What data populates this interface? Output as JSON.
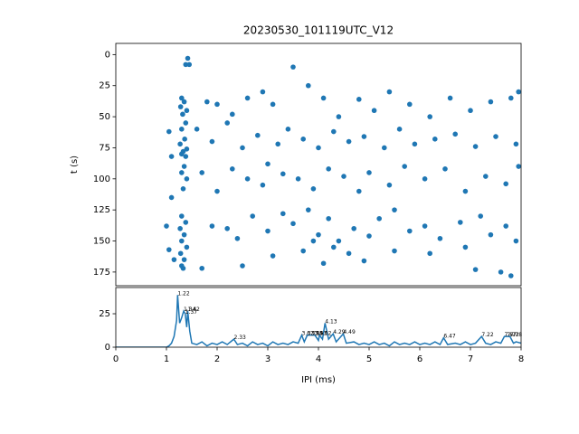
{
  "chart_data": [
    {
      "type": "scatter",
      "title": "20230530_101119UTC_V12",
      "ylabel": "t (s)",
      "color": "#1f77b4",
      "xlim": [
        0,
        8
      ],
      "ylim": [
        186,
        -9
      ],
      "yticks": [
        0,
        25,
        50,
        75,
        100,
        125,
        150,
        175
      ],
      "x": [
        1.3,
        1.35,
        1.28,
        1.4,
        1.32,
        1.38,
        1.3,
        1.36,
        1.27,
        1.4,
        1.33,
        1.3,
        1.38,
        1.35,
        1.3,
        1.4,
        1.33,
        1.3,
        1.38,
        1.27,
        1.35,
        1.3,
        1.4,
        1.28,
        1.35,
        1.3,
        1.33,
        1.42,
        1.38,
        1.45,
        1.05,
        1.1,
        1.05,
        1.15,
        1.1,
        1.0,
        1.8,
        2.0,
        2.3,
        2.6,
        2.9,
        3.1,
        3.5,
        3.8,
        4.1,
        4.4,
        4.8,
        5.1,
        5.4,
        5.8,
        6.2,
        6.6,
        7.0,
        7.4,
        7.8,
        7.95,
        1.6,
        1.9,
        2.2,
        2.5,
        2.8,
        3.2,
        3.4,
        3.7,
        4.0,
        4.3,
        4.6,
        4.9,
        5.3,
        5.6,
        5.9,
        6.3,
        6.7,
        7.1,
        7.5,
        7.9,
        1.7,
        2.0,
        2.3,
        2.6,
        2.9,
        3.0,
        3.3,
        3.6,
        3.9,
        4.2,
        4.5,
        4.8,
        5.0,
        5.4,
        5.7,
        6.1,
        6.5,
        6.9,
        7.3,
        7.7,
        7.95,
        1.9,
        2.2,
        2.4,
        2.7,
        3.0,
        3.3,
        3.5,
        3.8,
        4.0,
        4.2,
        4.4,
        4.7,
        5.0,
        5.2,
        5.5,
        5.8,
        6.1,
        6.4,
        6.8,
        7.2,
        7.4,
        7.7,
        7.9,
        1.7,
        2.5,
        3.1,
        3.7,
        4.1,
        4.9,
        5.5,
        6.2,
        7.1,
        7.6,
        7.8,
        6.9,
        3.9,
        4.3,
        4.6
      ],
      "y": [
        35,
        38,
        42,
        45,
        48,
        55,
        60,
        68,
        72,
        76,
        78,
        80,
        82,
        90,
        95,
        100,
        108,
        130,
        135,
        140,
        145,
        150,
        155,
        160,
        165,
        170,
        172,
        3,
        8,
        8,
        62,
        82,
        157,
        165,
        115,
        138,
        38,
        40,
        48,
        35,
        30,
        40,
        10,
        25,
        35,
        50,
        36,
        45,
        30,
        40,
        50,
        35,
        45,
        38,
        35,
        30,
        60,
        70,
        55,
        75,
        65,
        72,
        60,
        68,
        75,
        62,
        70,
        66,
        75,
        60,
        72,
        68,
        64,
        74,
        66,
        72,
        95,
        110,
        92,
        100,
        105,
        88,
        96,
        100,
        108,
        92,
        98,
        110,
        95,
        105,
        90,
        100,
        92,
        110,
        98,
        104,
        90,
        138,
        140,
        148,
        130,
        142,
        128,
        136,
        125,
        145,
        132,
        150,
        140,
        146,
        132,
        125,
        142,
        138,
        148,
        135,
        130,
        145,
        138,
        150,
        172,
        170,
        162,
        158,
        168,
        166,
        158,
        160,
        173,
        175,
        178,
        155,
        150,
        155,
        160
      ]
    },
    {
      "type": "line",
      "xlabel": "IPI (ms)",
      "color": "#1f77b4",
      "xlim": [
        0,
        8
      ],
      "xticks": [
        0,
        1,
        2,
        3,
        4,
        5,
        6,
        7,
        8
      ],
      "ylim": [
        0,
        44.6
      ],
      "yticks": [
        0,
        25
      ],
      "x": [
        0,
        1.0,
        1.05,
        1.1,
        1.15,
        1.2,
        1.22,
        1.26,
        1.3,
        1.34,
        1.37,
        1.4,
        1.42,
        1.46,
        1.5,
        1.6,
        1.7,
        1.8,
        1.9,
        2.0,
        2.1,
        2.2,
        2.33,
        2.4,
        2.5,
        2.6,
        2.7,
        2.8,
        2.9,
        3.0,
        3.1,
        3.2,
        3.3,
        3.4,
        3.5,
        3.6,
        3.67,
        3.72,
        3.78,
        3.85,
        3.93,
        4.0,
        4.02,
        4.08,
        4.13,
        4.2,
        4.29,
        4.35,
        4.49,
        4.55,
        4.7,
        4.8,
        4.9,
        5.0,
        5.1,
        5.2,
        5.3,
        5.4,
        5.5,
        5.6,
        5.7,
        5.8,
        5.9,
        6.0,
        6.1,
        6.2,
        6.3,
        6.4,
        6.47,
        6.55,
        6.7,
        6.8,
        6.9,
        7.0,
        7.1,
        7.22,
        7.3,
        7.4,
        7.5,
        7.6,
        7.67,
        7.72,
        7.78,
        7.85,
        7.9,
        8.0
      ],
      "values": [
        0,
        0,
        1,
        3,
        8,
        20,
        39,
        18,
        22,
        27,
        25,
        15,
        27,
        12,
        3,
        2,
        4,
        1,
        3,
        2,
        4,
        2,
        6,
        2,
        3,
        1,
        4,
        2,
        3,
        1,
        4,
        2,
        3,
        2,
        4,
        3,
        9,
        4,
        9,
        9,
        9,
        5,
        9,
        6,
        18,
        6,
        10,
        4,
        10,
        3,
        4,
        2,
        3,
        2,
        4,
        2,
        3,
        1,
        4,
        2,
        3,
        2,
        4,
        2,
        3,
        2,
        4,
        2,
        7,
        2,
        3,
        2,
        4,
        2,
        3,
        8,
        3,
        2,
        4,
        3,
        8,
        8,
        8,
        3,
        4,
        3
      ],
      "annotations": [
        {
          "x": 1.22,
          "y": 39,
          "label": "1.22"
        },
        {
          "x": 1.34,
          "y": 27,
          "label": "1.34"
        },
        {
          "x": 1.37,
          "y": 25,
          "label": "1.37"
        },
        {
          "x": 1.42,
          "y": 27,
          "label": "1.42"
        },
        {
          "x": 2.33,
          "y": 6,
          "label": "2.33"
        },
        {
          "x": 3.67,
          "y": 9,
          "label": "3.67"
        },
        {
          "x": 3.78,
          "y": 9,
          "label": "3.78"
        },
        {
          "x": 3.85,
          "y": 9,
          "label": "3.85"
        },
        {
          "x": 3.93,
          "y": 9,
          "label": "3.93"
        },
        {
          "x": 4.02,
          "y": 9,
          "label": "4.02"
        },
        {
          "x": 4.13,
          "y": 18,
          "label": "4.13"
        },
        {
          "x": 4.29,
          "y": 10,
          "label": "4.29"
        },
        {
          "x": 4.49,
          "y": 10,
          "label": "4.49"
        },
        {
          "x": 6.47,
          "y": 7,
          "label": "6.47"
        },
        {
          "x": 7.22,
          "y": 8,
          "label": "7.22"
        },
        {
          "x": 7.67,
          "y": 8,
          "label": "7.67"
        },
        {
          "x": 7.72,
          "y": 8,
          "label": "7.72"
        },
        {
          "x": 7.78,
          "y": 8,
          "label": "7.78"
        }
      ]
    }
  ]
}
